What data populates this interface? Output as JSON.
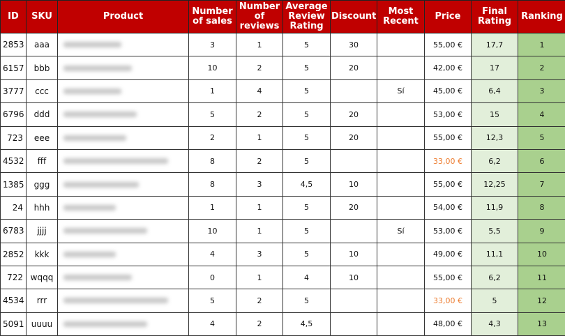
{
  "colors": {
    "header": "#C00000",
    "final_rating_bg": "#E2EFDA",
    "ranking_bg": "#A9D08E",
    "low_price": "#ED7D31"
  },
  "headers": [
    "ID",
    "SKU",
    "Product",
    "Number of sales",
    "Number of reviews",
    "Average Review Rating",
    "Discount",
    "Most Recent",
    "Price",
    "Final Rating",
    "Ranking"
  ],
  "rows": [
    {
      "id": "2853",
      "sku": "aaa",
      "sales": "3",
      "reviews": "1",
      "avg": "5",
      "discount": "30",
      "recent": "",
      "price": "55,00 €",
      "final": "17,7",
      "rank": "1",
      "w": 55
    },
    {
      "id": "6157",
      "sku": "bbb",
      "sales": "10",
      "reviews": "2",
      "avg": "5",
      "discount": "20",
      "recent": "",
      "price": "42,00 €",
      "final": "17",
      "rank": "2",
      "w": 65
    },
    {
      "id": "3777",
      "sku": "ccc",
      "sales": "1",
      "reviews": "4",
      "avg": "5",
      "discount": "",
      "recent": "Sí",
      "price": "45,00 €",
      "final": "6,4",
      "rank": "3",
      "w": 55
    },
    {
      "id": "6796",
      "sku": "ddd",
      "sales": "5",
      "reviews": "2",
      "avg": "5",
      "discount": "20",
      "recent": "",
      "price": "53,00 €",
      "final": "15",
      "rank": "4",
      "w": 70
    },
    {
      "id": "723",
      "sku": "eee",
      "sales": "2",
      "reviews": "1",
      "avg": "5",
      "discount": "20",
      "recent": "",
      "price": "55,00 €",
      "final": "12,3",
      "rank": "5",
      "w": 60
    },
    {
      "id": "4532",
      "sku": "fff",
      "sales": "8",
      "reviews": "2",
      "avg": "5",
      "discount": "",
      "recent": "",
      "price": "33,00 €",
      "orange": true,
      "final": "6,2",
      "rank": "6",
      "w": 100
    },
    {
      "id": "1385",
      "sku": "ggg",
      "sales": "8",
      "reviews": "3",
      "avg": "4,5",
      "discount": "10",
      "recent": "",
      "price": "55,00 €",
      "final": "12,25",
      "rank": "7",
      "w": 72
    },
    {
      "id": "24",
      "sku": "hhh",
      "sales": "1",
      "reviews": "1",
      "avg": "5",
      "discount": "20",
      "recent": "",
      "price": "54,00 €",
      "final": "11,9",
      "rank": "8",
      "w": 50
    },
    {
      "id": "6783",
      "sku": "jjjj",
      "sales": "10",
      "reviews": "1",
      "avg": "5",
      "discount": "",
      "recent": "Sí",
      "price": "53,00 €",
      "final": "5,5",
      "rank": "9",
      "w": 80
    },
    {
      "id": "2852",
      "sku": "kkk",
      "sales": "4",
      "reviews": "3",
      "avg": "5",
      "discount": "10",
      "recent": "",
      "price": "49,00 €",
      "final": "11,1",
      "rank": "10",
      "w": 50
    },
    {
      "id": "722",
      "sku": "wqqq",
      "sales": "0",
      "reviews": "1",
      "avg": "4",
      "discount": "10",
      "recent": "",
      "price": "55,00 €",
      "final": "6,2",
      "rank": "11",
      "w": 65
    },
    {
      "id": "4534",
      "sku": "rrr",
      "sales": "5",
      "reviews": "2",
      "avg": "5",
      "discount": "",
      "recent": "",
      "price": "33,00 €",
      "orange": true,
      "final": "5",
      "rank": "12",
      "w": 100
    },
    {
      "id": "5091",
      "sku": "uuuu",
      "sales": "4",
      "reviews": "2",
      "avg": "4,5",
      "discount": "",
      "recent": "",
      "price": "48,00 €",
      "final": "4,3",
      "rank": "13",
      "w": 80
    }
  ]
}
